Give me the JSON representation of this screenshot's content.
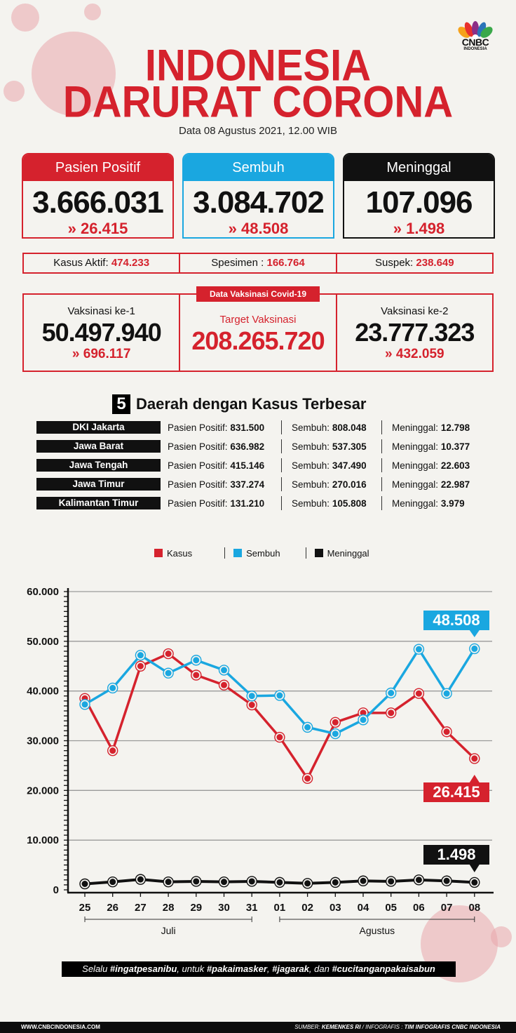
{
  "header": {
    "title_line1": "INDONESIA",
    "title_line2": "DARURAT CORONA",
    "subtitle": "Data 08 Agustus 2021, 12.00 WIB",
    "logo_text": "CNBC",
    "logo_sub": "INDONESIA"
  },
  "colors": {
    "red": "#d5222d",
    "blue": "#1aa7e0",
    "black": "#111111",
    "background": "#f4f3ef"
  },
  "cards": [
    {
      "label": "Pasien Positif",
      "value": "3.666.031",
      "delta": "26.415",
      "color": "#d5222d"
    },
    {
      "label": "Sembuh",
      "value": "3.084.702",
      "delta": "48.508",
      "color": "#1aa7e0"
    },
    {
      "label": "Meninggal",
      "value": "107.096",
      "delta": "1.498",
      "color": "#111111"
    }
  ],
  "summary": [
    {
      "label": "Kasus Aktif:",
      "value": "474.233"
    },
    {
      "label": "Spesimen :",
      "value": "166.764"
    },
    {
      "label": "Suspek:",
      "value": "238.649"
    }
  ],
  "vaccination": {
    "tag": "Data Vaksinasi Covid-19",
    "dose1": {
      "label": "Vaksinasi ke-1",
      "value": "50.497.940",
      "delta": "696.117"
    },
    "target": {
      "label": "Target Vaksinasi",
      "value": "208.265.720"
    },
    "dose2": {
      "label": "Vaksinasi ke-2",
      "value": "23.777.323",
      "delta": "432.059"
    }
  },
  "regions": {
    "number": "5",
    "title": "Daerah dengan Kasus Terbesar",
    "positif_label": "Pasien Positif:",
    "sembuh_label": "Sembuh:",
    "meninggal_label": "Meninggal:",
    "rows": [
      {
        "name": "DKI Jakarta",
        "positif": "831.500",
        "sembuh": "808.048",
        "meninggal": "12.798"
      },
      {
        "name": "Jawa Barat",
        "positif": "636.982",
        "sembuh": "537.305",
        "meninggal": "10.377"
      },
      {
        "name": "Jawa Tengah",
        "positif": "415.146",
        "sembuh": "347.490",
        "meninggal": "22.603"
      },
      {
        "name": "Jawa Timur",
        "positif": "337.274",
        "sembuh": "270.016",
        "meninggal": "22.987"
      },
      {
        "name": "Kalimantan Timur",
        "positif": "131.210",
        "sembuh": "105.808",
        "meninggal": "3.979"
      }
    ]
  },
  "chart_data": {
    "type": "line",
    "title": "",
    "xlabel": "",
    "ylabel": "",
    "x": [
      "25",
      "26",
      "27",
      "28",
      "29",
      "30",
      "31",
      "01",
      "02",
      "03",
      "04",
      "05",
      "06",
      "07",
      "08"
    ],
    "x_groups": [
      {
        "label": "Juli",
        "from": "25",
        "to": "31"
      },
      {
        "label": "Agustus",
        "from": "01",
        "to": "08"
      }
    ],
    "y_ticks": [
      "0",
      "10.000",
      "20.000",
      "30.000",
      "40.000",
      "50.000",
      "60.000"
    ],
    "ylim": [
      0,
      60000
    ],
    "grid": true,
    "legend_position": "top",
    "series": [
      {
        "name": "Kasus",
        "color": "#d5222d",
        "values": [
          38500,
          28000,
          45000,
          47500,
          43200,
          41200,
          37200,
          30700,
          22400,
          33700,
          35600,
          35600,
          39500,
          31800,
          26415
        ]
      },
      {
        "name": "Sembuh",
        "color": "#1aa7e0",
        "values": [
          37300,
          40600,
          47200,
          43600,
          46200,
          44200,
          39000,
          39100,
          32700,
          31400,
          34200,
          39600,
          48400,
          39500,
          48508
        ]
      },
      {
        "name": "Meninggal",
        "color": "#111111",
        "values": [
          1200,
          1600,
          2100,
          1600,
          1700,
          1600,
          1700,
          1500,
          1300,
          1500,
          1800,
          1700,
          2000,
          1800,
          1498
        ]
      }
    ],
    "annotations": [
      {
        "series": "Sembuh",
        "x": "08",
        "text": "48.508"
      },
      {
        "series": "Kasus",
        "x": "08",
        "text": "26.415"
      },
      {
        "series": "Meninggal",
        "x": "08",
        "text": "1.498"
      }
    ]
  },
  "tagline": {
    "p1": "Selalu ",
    "h1": "#ingatpesanibu",
    "p2": ", untuk ",
    "h2": "#pakaimasker",
    "p3": ", ",
    "h3": "#jagarak",
    "p4": ", dan ",
    "h4": "#cucitanganpakaisabun"
  },
  "footer": {
    "website": "WWW.CNBCINDONESIA.COM",
    "source_label": "SUMBER: ",
    "source": "KEMENKES RI",
    "info_label": " / INFOGRAFIS : ",
    "info": "TIM INFOGRAFIS CNBC INDONESIA"
  }
}
